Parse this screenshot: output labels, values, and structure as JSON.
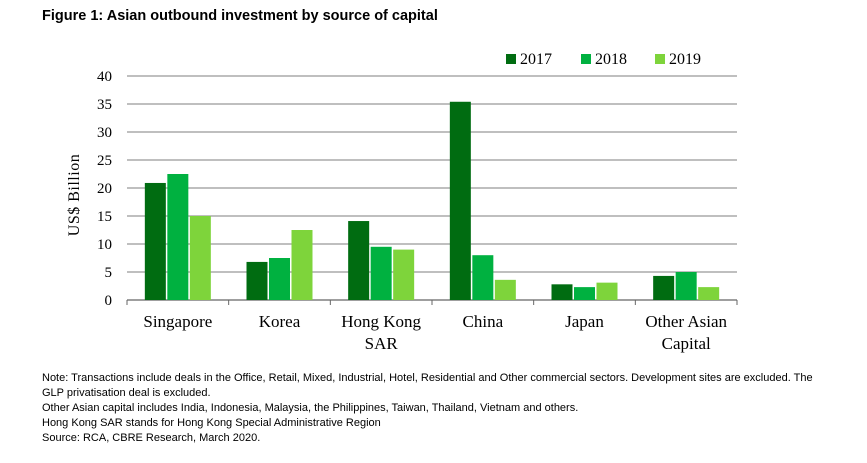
{
  "figure_title": "Figure 1: Asian outbound investment by source of capital",
  "colors": {
    "s2017": "#006c11",
    "s2018": "#00b140",
    "s2019": "#7ed43b",
    "grid": "#7f7f7f"
  },
  "chart_data": {
    "type": "bar",
    "categories": [
      [
        "Singapore"
      ],
      [
        "Korea"
      ],
      [
        "Hong Kong",
        "SAR"
      ],
      [
        "China"
      ],
      [
        "Japan"
      ],
      [
        "Other Asian",
        "Capital"
      ]
    ],
    "series": [
      {
        "name": "2017",
        "values": [
          20.9,
          6.8,
          14.1,
          35.4,
          2.8,
          4.3
        ]
      },
      {
        "name": "2018",
        "values": [
          22.5,
          7.5,
          9.5,
          8.0,
          2.3,
          5.0
        ]
      },
      {
        "name": "2019",
        "values": [
          15.0,
          12.5,
          9.0,
          3.6,
          3.1,
          2.3
        ]
      }
    ],
    "ylabel": "US$ Billion",
    "ylim": [
      0,
      40
    ],
    "yticks": [
      "0",
      "5",
      "10",
      "15",
      "20",
      "25",
      "30",
      "35",
      "40"
    ],
    "grid": true,
    "legend_position": "top-right"
  },
  "notes": [
    "Note: Transactions include deals in the Office, Retail, Mixed, Industrial, Hotel, Residential and Other commercial sectors. Development sites are excluded. The GLP privatisation deal is excluded.",
    "Other Asian capital includes India, Indonesia, Malaysia, the Philippines, Taiwan, Thailand, Vietnam and others.",
    "Hong Kong SAR stands for Hong Kong Special Administrative Region",
    "Source: RCA, CBRE Research, March 2020."
  ]
}
